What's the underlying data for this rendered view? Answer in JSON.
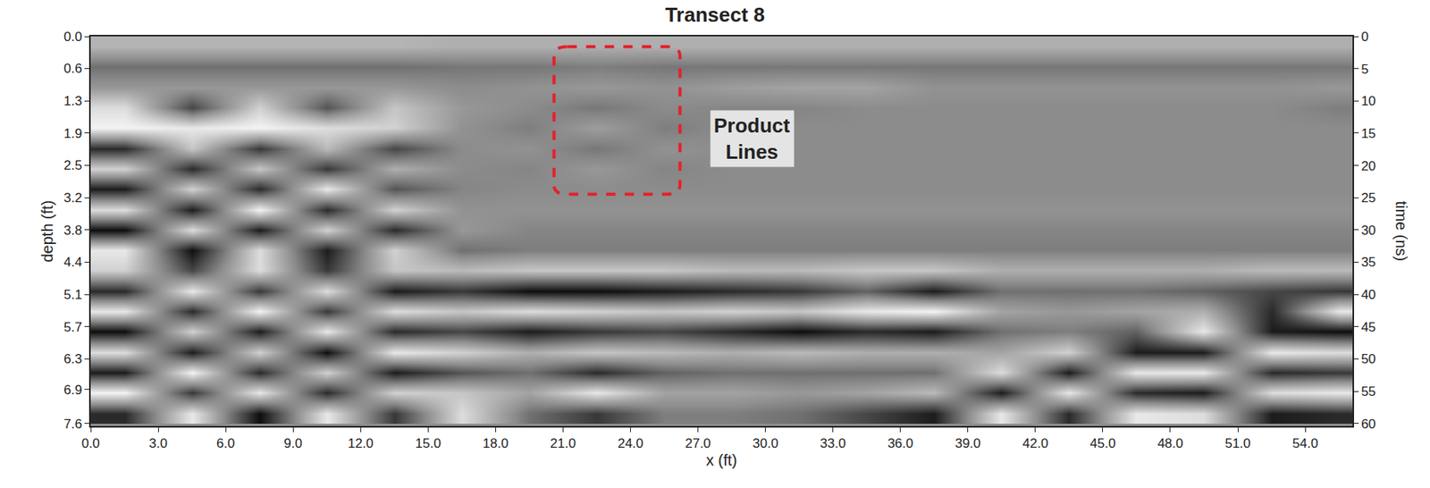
{
  "chart_data": {
    "type": "heatmap",
    "title": "Transect 8",
    "x_label": "x (ft)",
    "y_label": "depth (ft)",
    "y2_label": "time (ns)",
    "xlim": [
      0,
      56.1
    ],
    "ylim": [
      7.65,
      0
    ],
    "y2lim": [
      60.4,
      0
    ],
    "xticks": [
      {
        "value": 0,
        "label": "0.0"
      },
      {
        "value": 3,
        "label": "3.0"
      },
      {
        "value": 6,
        "label": "6.0"
      },
      {
        "value": 9,
        "label": "9.0"
      },
      {
        "value": 12,
        "label": "12.0"
      },
      {
        "value": 15,
        "label": "15.0"
      },
      {
        "value": 18,
        "label": "18.0"
      },
      {
        "value": 21,
        "label": "21.0"
      },
      {
        "value": 24,
        "label": "24.0"
      },
      {
        "value": 27,
        "label": "27.0"
      },
      {
        "value": 30,
        "label": "30.0"
      },
      {
        "value": 33,
        "label": "33.0"
      },
      {
        "value": 36,
        "label": "36.0"
      },
      {
        "value": 39,
        "label": "39.0"
      },
      {
        "value": 42,
        "label": "42.0"
      },
      {
        "value": 45,
        "label": "45.0"
      },
      {
        "value": 48,
        "label": "48.0"
      },
      {
        "value": 51,
        "label": "51.0"
      },
      {
        "value": 54,
        "label": "54.0"
      }
    ],
    "yticks": [
      {
        "value": 0,
        "label": "0.0"
      },
      {
        "value": 0.63,
        "label": "0.6"
      },
      {
        "value": 1.27,
        "label": "1.3"
      },
      {
        "value": 1.9,
        "label": "1.9"
      },
      {
        "value": 2.53,
        "label": "2.5"
      },
      {
        "value": 3.17,
        "label": "3.2"
      },
      {
        "value": 3.8,
        "label": "3.8"
      },
      {
        "value": 4.43,
        "label": "4.4"
      },
      {
        "value": 5.07,
        "label": "5.1"
      },
      {
        "value": 5.7,
        "label": "5.7"
      },
      {
        "value": 6.33,
        "label": "6.3"
      },
      {
        "value": 6.93,
        "label": "6.9"
      },
      {
        "value": 7.6,
        "label": "7.6"
      }
    ],
    "y2ticks": [
      0,
      5,
      10,
      15,
      20,
      25,
      30,
      35,
      40,
      45,
      50,
      55,
      60
    ],
    "x": [
      1.5,
      4.5,
      7.5,
      10.5,
      13.5,
      16.5,
      19.5,
      22.5,
      25.5,
      28.5,
      31.5,
      34.5,
      37.5,
      40.5,
      43.5,
      46.5,
      49.5,
      52.5,
      55.5
    ],
    "y": [
      0.2,
      0.6,
      1.0,
      1.4,
      1.8,
      2.2,
      2.6,
      3.0,
      3.4,
      3.8,
      4.2,
      4.6,
      5.0,
      5.4,
      5.8,
      6.2,
      6.6,
      7.0,
      7.4
    ],
    "z": [
      [
        0.35,
        0.35,
        0.35,
        0.35,
        0.35,
        0.3,
        0.3,
        0.3,
        0.3,
        0.3,
        0.3,
        0.3,
        0.3,
        0.3,
        0.3,
        0.3,
        0.3,
        0.3,
        0.3
      ],
      [
        -0.2,
        -0.2,
        -0.2,
        -0.2,
        -0.2,
        -0.15,
        -0.15,
        -0.1,
        -0.15,
        -0.15,
        -0.15,
        -0.15,
        -0.15,
        -0.15,
        -0.15,
        -0.15,
        -0.15,
        -0.15,
        -0.15
      ],
      [
        0.1,
        0.1,
        0.1,
        0.1,
        0.1,
        0.0,
        0.05,
        0.1,
        0.05,
        0.15,
        0.2,
        0.2,
        0.05,
        0.05,
        0.05,
        0.05,
        0.05,
        0.05,
        0.1
      ],
      [
        0.7,
        -0.5,
        0.6,
        -0.4,
        0.5,
        0.1,
        0.0,
        -0.15,
        0.0,
        -0.05,
        -0.05,
        0.0,
        0.0,
        0.0,
        0.0,
        0.0,
        0.0,
        0.0,
        -0.1
      ],
      [
        0.9,
        0.8,
        0.9,
        0.7,
        0.6,
        0.05,
        -0.1,
        0.15,
        -0.1,
        0.0,
        0.0,
        0.0,
        0.0,
        0.0,
        0.0,
        0.0,
        0.0,
        0.0,
        0.0
      ],
      [
        -0.7,
        0.5,
        -0.6,
        0.4,
        -0.5,
        0.0,
        0.05,
        -0.15,
        0.05,
        0.0,
        0.0,
        0.0,
        0.0,
        0.0,
        0.0,
        0.0,
        0.0,
        0.0,
        0.0
      ],
      [
        0.6,
        -0.7,
        0.5,
        -0.6,
        0.3,
        0.0,
        -0.05,
        0.1,
        -0.05,
        0.0,
        0.0,
        0.0,
        0.0,
        0.0,
        0.0,
        0.0,
        0.0,
        0.0,
        0.0
      ],
      [
        -0.8,
        0.6,
        -0.7,
        0.8,
        -0.4,
        -0.05,
        0.0,
        0.0,
        0.0,
        0.0,
        0.0,
        0.0,
        0.0,
        0.0,
        0.0,
        0.0,
        0.0,
        0.0,
        0.0
      ],
      [
        0.7,
        -0.8,
        0.9,
        -0.7,
        0.6,
        0.05,
        0.05,
        0.05,
        0.05,
        0.05,
        0.05,
        0.05,
        0.05,
        0.05,
        0.05,
        0.05,
        0.05,
        0.05,
        0.05
      ],
      [
        -0.9,
        0.7,
        -0.8,
        0.6,
        -0.7,
        0.1,
        -0.05,
        -0.05,
        -0.05,
        -0.05,
        -0.05,
        -0.05,
        -0.05,
        -0.05,
        -0.05,
        -0.05,
        -0.05,
        -0.05,
        -0.05
      ],
      [
        0.8,
        -0.9,
        0.7,
        -0.8,
        0.6,
        -0.2,
        -0.1,
        -0.1,
        -0.1,
        -0.1,
        -0.1,
        -0.1,
        -0.1,
        -0.1,
        -0.1,
        -0.1,
        -0.1,
        -0.1,
        -0.1
      ],
      [
        0.6,
        -0.5,
        0.7,
        -0.6,
        0.5,
        0.4,
        0.5,
        0.5,
        0.5,
        0.4,
        0.4,
        0.5,
        0.5,
        0.3,
        0.3,
        0.3,
        0.3,
        0.4,
        0.4
      ],
      [
        -0.7,
        0.8,
        -0.6,
        0.7,
        -0.8,
        -0.6,
        -0.9,
        -0.9,
        -0.8,
        -0.7,
        -0.6,
        -0.3,
        -0.8,
        -0.2,
        -0.2,
        -0.2,
        -0.3,
        -0.5,
        -0.6
      ],
      [
        0.8,
        -0.7,
        0.9,
        -0.6,
        0.7,
        0.5,
        0.7,
        0.6,
        0.5,
        0.6,
        0.5,
        0.8,
        0.9,
        0.2,
        0.1,
        0.2,
        0.3,
        -0.7,
        0.8
      ],
      [
        -0.9,
        0.6,
        -0.8,
        0.8,
        -0.7,
        -0.5,
        -0.8,
        -0.6,
        -0.5,
        -0.7,
        -0.9,
        -0.7,
        -0.8,
        -0.2,
        -0.1,
        -0.3,
        0.8,
        -0.8,
        -0.9
      ],
      [
        0.7,
        -0.8,
        0.6,
        -0.9,
        0.8,
        0.6,
        0.3,
        0.5,
        0.4,
        0.3,
        0.4,
        0.3,
        0.3,
        0.2,
        0.6,
        -0.8,
        -0.8,
        0.8,
        0.7
      ],
      [
        -0.8,
        0.9,
        -0.7,
        0.6,
        -0.8,
        -0.4,
        -0.2,
        -0.7,
        -0.3,
        -0.2,
        -0.2,
        -0.2,
        -0.2,
        0.7,
        -0.8,
        0.8,
        0.8,
        -0.7,
        -0.6
      ],
      [
        0.9,
        -0.6,
        0.8,
        -0.7,
        0.6,
        0.5,
        0.2,
        0.8,
        0.2,
        0.2,
        0.1,
        0.2,
        0.4,
        -0.8,
        0.8,
        -0.7,
        -0.8,
        0.7,
        0.8
      ],
      [
        -0.7,
        0.8,
        -0.9,
        0.8,
        -0.6,
        0.7,
        -0.2,
        -0.6,
        -0.1,
        -0.1,
        -0.2,
        -0.5,
        -0.8,
        0.8,
        -0.7,
        0.8,
        0.7,
        -0.8,
        -0.7
      ]
    ],
    "zlim": [
      -1,
      1
    ],
    "highlight": {
      "x0": 20.6,
      "x1": 26.2,
      "y0": 0.2,
      "y1": 3.1,
      "color": "#e3222b"
    },
    "annotations": [
      {
        "text": "Product Lines",
        "x": 29.4,
        "y": 2.0
      }
    ]
  }
}
